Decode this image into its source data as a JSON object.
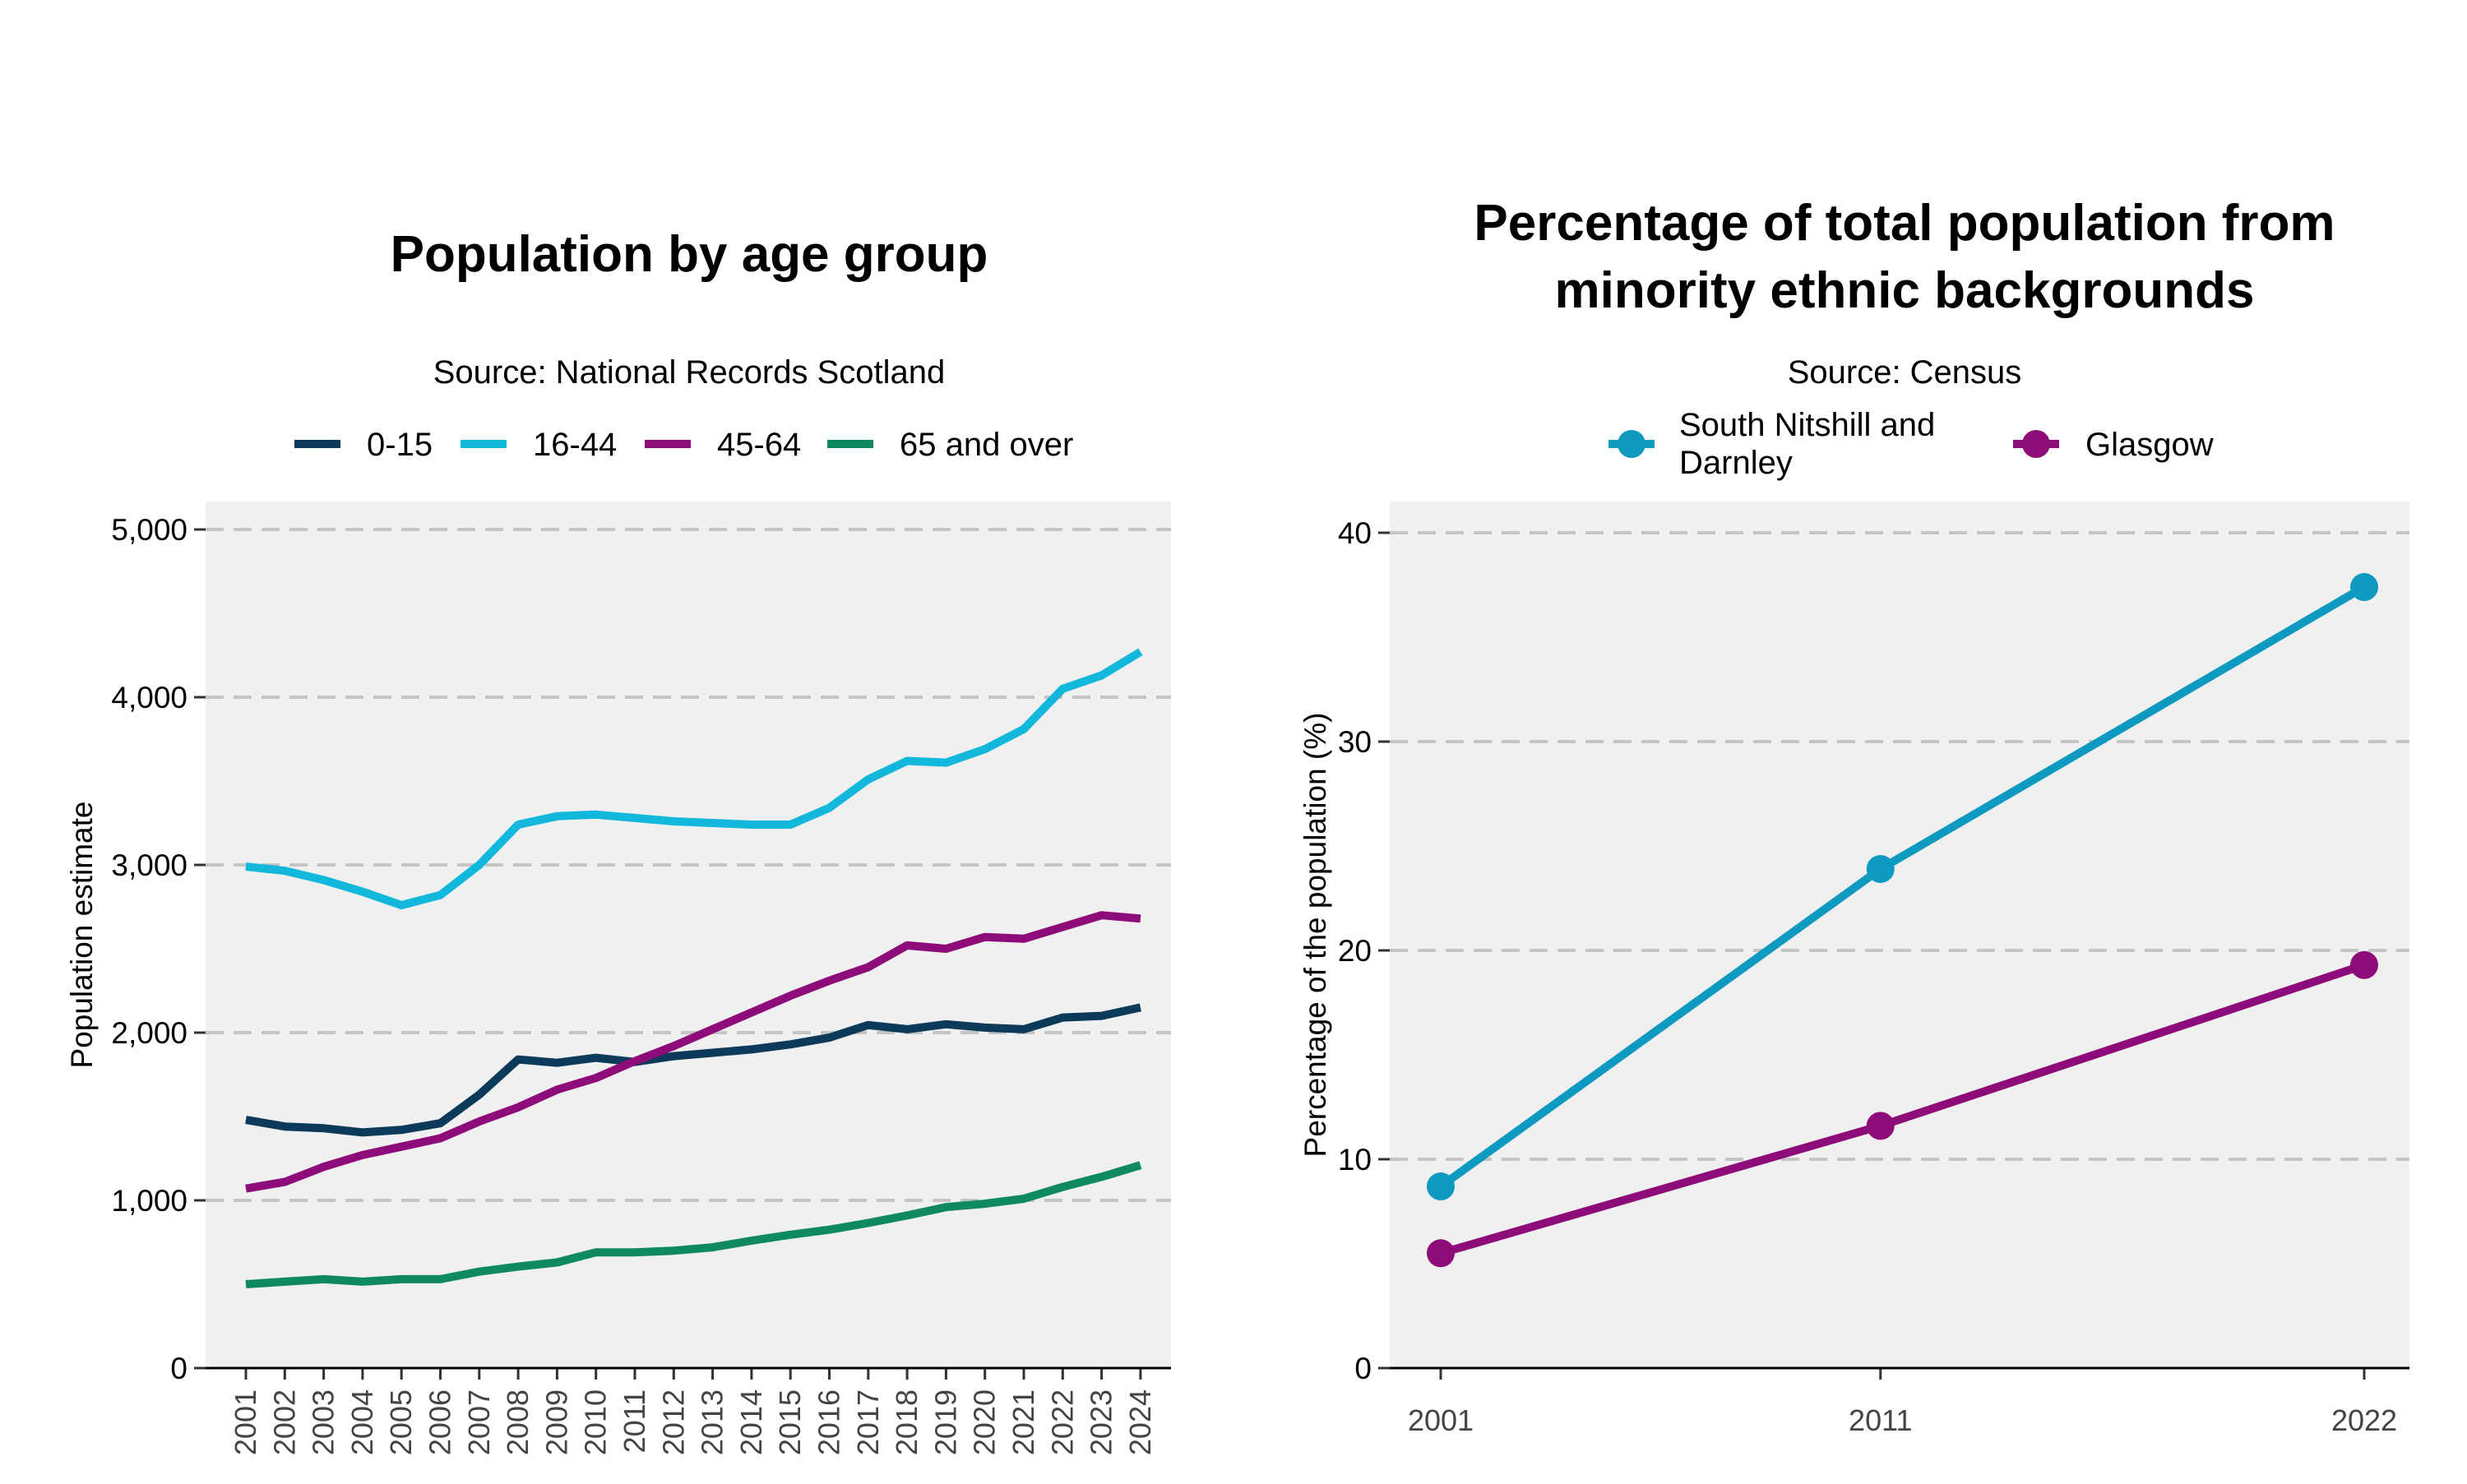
{
  "chart_data": [
    {
      "type": "line",
      "title": "Population by age group",
      "subtitle": "Source: National Records Scotland",
      "xlabel": "",
      "ylabel": "Population estimate",
      "ylim": [
        0,
        5000
      ],
      "yticks": [
        "0",
        "1,000",
        "2,000",
        "3,000",
        "4,000",
        "5,000"
      ],
      "grid": "horizontal dashed",
      "legend_position": "top",
      "x": [
        "2001",
        "2002",
        "2003",
        "2004",
        "2005",
        "2006",
        "2007",
        "2008",
        "2009",
        "2010",
        "2011",
        "2012",
        "2013",
        "2014",
        "2015",
        "2016",
        "2017",
        "2018",
        "2019",
        "2020",
        "2021",
        "2022",
        "2023",
        "2024"
      ],
      "series": [
        {
          "name": "0-15",
          "color": "#0b3a5a",
          "values": [
            1480,
            1440,
            1430,
            1405,
            1420,
            1460,
            1630,
            1840,
            1820,
            1850,
            1825,
            1860,
            1880,
            1900,
            1930,
            1970,
            2045,
            2020,
            2050,
            2030,
            2020,
            2090,
            2100,
            2150
          ]
        },
        {
          "name": "16-44",
          "color": "#12b8dc",
          "values": [
            2990,
            2965,
            2910,
            2840,
            2760,
            2820,
            3000,
            3240,
            3290,
            3300,
            3280,
            3260,
            3250,
            3240,
            3240,
            3340,
            3510,
            3620,
            3610,
            3690,
            3810,
            4050,
            4130,
            4270
          ]
        },
        {
          "name": "45-64",
          "color": "#8e0b7a",
          "values": [
            1070,
            1110,
            1200,
            1270,
            1320,
            1370,
            1470,
            1555,
            1660,
            1730,
            1830,
            1920,
            2020,
            2120,
            2220,
            2310,
            2390,
            2520,
            2500,
            2570,
            2560,
            2630,
            2700,
            2680
          ]
        },
        {
          "name": "65 and over",
          "color": "#0f8a5f",
          "values": [
            500,
            515,
            530,
            515,
            530,
            530,
            575,
            605,
            630,
            690,
            690,
            700,
            720,
            760,
            795,
            825,
            865,
            910,
            960,
            980,
            1010,
            1080,
            1140,
            1210
          ]
        }
      ]
    },
    {
      "type": "line",
      "title_lines": [
        "Percentage of total population from",
        "minority ethnic backgrounds"
      ],
      "subtitle": "Source: Census",
      "xlabel": "",
      "ylabel": "Percentage of the population (%)",
      "ylim": [
        0,
        40
      ],
      "yticks": [
        "0",
        "10",
        "20",
        "30",
        "40"
      ],
      "grid": "horizontal dashed",
      "legend_position": "top",
      "x": [
        "2001",
        "2011",
        "2022"
      ],
      "series": [
        {
          "name_lines": [
            "South Nitshill and",
            "Darnley"
          ],
          "color": "#0e9ac0",
          "values": [
            8.7,
            23.9,
            37.4
          ]
        },
        {
          "name": "Glasgow",
          "color": "#8e0b7a",
          "values": [
            5.5,
            11.6,
            19.3
          ]
        }
      ]
    }
  ]
}
